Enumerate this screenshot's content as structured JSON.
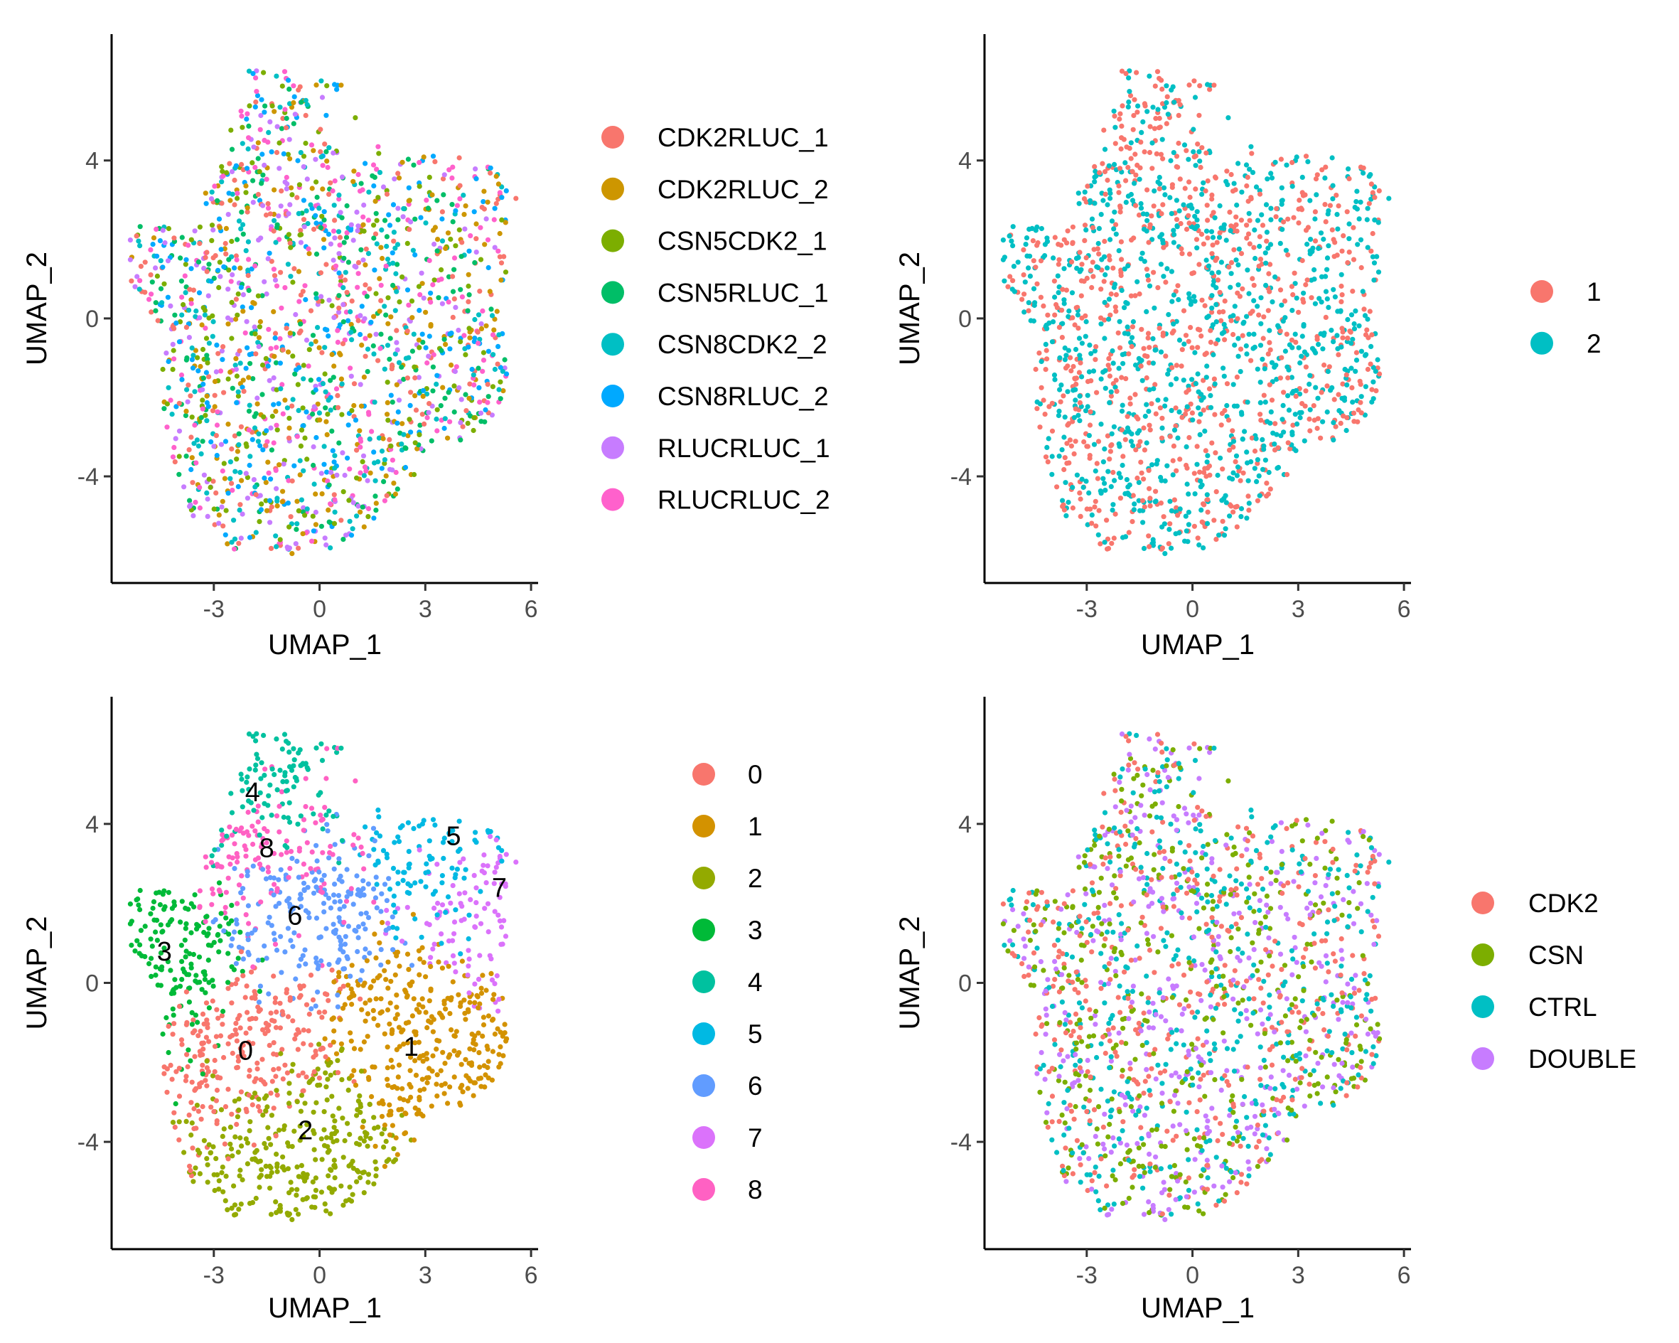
{
  "chart_data": [
    {
      "type": "scatter",
      "panel": "top-left",
      "xlabel": "UMAP_1",
      "ylabel": "UMAP_2",
      "x_ticks": [
        -3,
        0,
        3,
        6
      ],
      "y_ticks": [
        4,
        0,
        -4
      ],
      "x_tick_labels": [
        "-3",
        "0",
        "3",
        "6"
      ],
      "y_tick_labels": [
        "4",
        "0",
        "-4"
      ],
      "xlim": [
        -5.9,
        6.2
      ],
      "ylim": [
        -6.7,
        7.2
      ],
      "grid": false,
      "legend_position": "right",
      "color_mode": "mixed",
      "series": [
        {
          "name": "CDK2RLUC_1",
          "color": "#F8766D"
        },
        {
          "name": "CDK2RLUC_2",
          "color": "#CD9600"
        },
        {
          "name": "CSN5CDK2_1",
          "color": "#7CAE00"
        },
        {
          "name": "CSN5RLUC_1",
          "color": "#00BE67"
        },
        {
          "name": "CSN8CDK2_2",
          "color": "#00BFC4"
        },
        {
          "name": "CSN8RLUC_2",
          "color": "#00A9FF"
        },
        {
          "name": "RLUCRLUC_1",
          "color": "#C77CFF"
        },
        {
          "name": "RLUCRLUC_2",
          "color": "#FF61CC"
        }
      ]
    },
    {
      "type": "scatter",
      "panel": "top-right",
      "xlabel": "UMAP_1",
      "ylabel": "UMAP_2",
      "x_ticks": [
        -3,
        0,
        3,
        6
      ],
      "y_ticks": [
        4,
        0,
        -4
      ],
      "x_tick_labels": [
        "-3",
        "0",
        "3",
        "6"
      ],
      "y_tick_labels": [
        "4",
        "0",
        "-4"
      ],
      "xlim": [
        -5.9,
        6.2
      ],
      "ylim": [
        -6.7,
        7.2
      ],
      "grid": false,
      "legend_position": "right",
      "color_mode": "mixed",
      "series": [
        {
          "name": "1",
          "color": "#F8766D"
        },
        {
          "name": "2",
          "color": "#00BFC4"
        }
      ]
    },
    {
      "type": "scatter",
      "panel": "bottom-left",
      "xlabel": "UMAP_1",
      "ylabel": "UMAP_2",
      "x_ticks": [
        -3,
        0,
        3,
        6
      ],
      "y_ticks": [
        4,
        0,
        -4
      ],
      "x_tick_labels": [
        "-3",
        "0",
        "3",
        "6"
      ],
      "y_tick_labels": [
        "4",
        "0",
        "-4"
      ],
      "xlim": [
        -5.9,
        6.2
      ],
      "ylim": [
        -6.7,
        7.2
      ],
      "grid": false,
      "legend_position": "right",
      "color_mode": "clustered",
      "series": [
        {
          "name": "0",
          "color": "#F8766D",
          "center": [
            -1.7,
            -1.5
          ]
        },
        {
          "name": "1",
          "color": "#D39200",
          "center": [
            2.6,
            -1.6
          ]
        },
        {
          "name": "2",
          "color": "#93AA00",
          "center": [
            -0.4,
            -3.7
          ]
        },
        {
          "name": "3",
          "color": "#00BA38",
          "center": [
            -4.4,
            0.8
          ]
        },
        {
          "name": "4",
          "color": "#00C19F",
          "center": [
            -1.9,
            4.8
          ]
        },
        {
          "name": "5",
          "color": "#00B9E3",
          "center": [
            3.8,
            3.7
          ]
        },
        {
          "name": "6",
          "color": "#619CFF",
          "center": [
            -0.8,
            1.9
          ]
        },
        {
          "name": "7",
          "color": "#DB72FB",
          "center": [
            5.1,
            2.4
          ]
        },
        {
          "name": "8",
          "color": "#FF61C3",
          "center": [
            -1.5,
            3.3
          ]
        }
      ],
      "annotations": [
        {
          "text": "0",
          "x": -2.1,
          "y": -1.7
        },
        {
          "text": "1",
          "x": 2.6,
          "y": -1.6
        },
        {
          "text": "2",
          "x": -0.4,
          "y": -3.7
        },
        {
          "text": "3",
          "x": -4.4,
          "y": 0.8
        },
        {
          "text": "4",
          "x": -1.9,
          "y": 4.8
        },
        {
          "text": "5",
          "x": 3.8,
          "y": 3.7
        },
        {
          "text": "6",
          "x": -0.7,
          "y": 1.7
        },
        {
          "text": "7",
          "x": 5.1,
          "y": 2.4
        },
        {
          "text": "8",
          "x": -1.5,
          "y": 3.4
        }
      ]
    },
    {
      "type": "scatter",
      "panel": "bottom-right",
      "xlabel": "UMAP_1",
      "ylabel": "UMAP_2",
      "x_ticks": [
        -3,
        0,
        3,
        6
      ],
      "y_ticks": [
        4,
        0,
        -4
      ],
      "x_tick_labels": [
        "-3",
        "0",
        "3",
        "6"
      ],
      "y_tick_labels": [
        "4",
        "0",
        "-4"
      ],
      "xlim": [
        -5.9,
        6.2
      ],
      "ylim": [
        -6.7,
        7.2
      ],
      "grid": false,
      "legend_position": "right",
      "color_mode": "mixed",
      "series": [
        {
          "name": "CDK2",
          "color": "#F8766D"
        },
        {
          "name": "CSN",
          "color": "#7CAE00"
        },
        {
          "name": "CTRL",
          "color": "#00BFC4"
        },
        {
          "name": "DOUBLE",
          "color": "#C77CFF"
        }
      ]
    }
  ]
}
